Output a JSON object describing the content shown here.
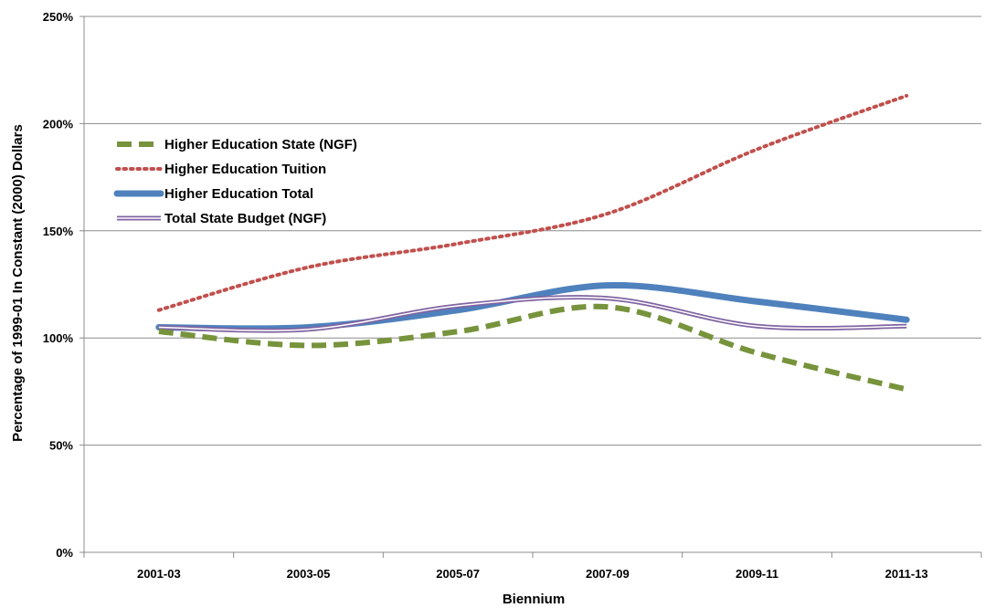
{
  "chart_data": {
    "type": "line",
    "xlabel": "Biennium",
    "ylabel": "Percentage of 1999-01 In Constant (2000) Dollars",
    "categories": [
      "2001-03",
      "2003-05",
      "2005-07",
      "2007-09",
      "2009-11",
      "2011-13"
    ],
    "ylim": [
      0,
      250
    ],
    "yticks": [
      0,
      50,
      100,
      150,
      200,
      250
    ],
    "ytick_labels": [
      "0%",
      "50%",
      "100%",
      "150%",
      "200%",
      "250%"
    ],
    "grid": "horizontal",
    "legend_position": "upper-left",
    "series": [
      {
        "name": "Higher Education State (NGF)",
        "color": "#77933C",
        "style": "dashed",
        "values": [
          103,
          96.5,
          103,
          114.5,
          93,
          76
        ]
      },
      {
        "name": "Higher Education Tuition",
        "color": "#C0504D",
        "style": "dotted",
        "values": [
          113,
          133,
          144,
          158,
          188,
          213
        ]
      },
      {
        "name": "Higher Education Total",
        "color": "#4F81BD",
        "style": "thick",
        "values": [
          105,
          105,
          113,
          124.5,
          117,
          108.5
        ]
      },
      {
        "name": "Total State Budget (NGF)",
        "color": "#8064A2",
        "style": "double",
        "values": [
          105,
          104,
          115,
          118.5,
          105.5,
          105.5
        ]
      }
    ]
  }
}
